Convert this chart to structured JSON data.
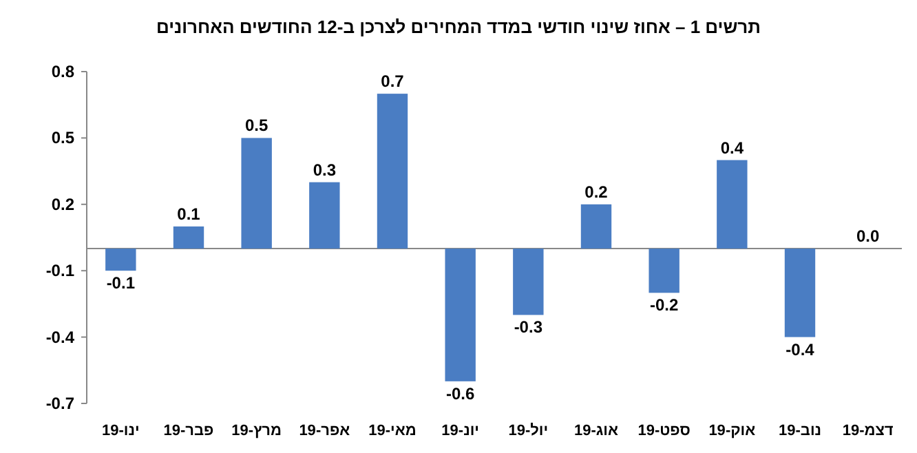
{
  "chart_data": {
    "type": "bar",
    "title": "תרשים 1 – אחוז שינוי חודשי במדד המחירים לצרכן ב-12 החודשים האחרונים",
    "categories": [
      "ינו-19",
      "פבר-19",
      "מרץ-19",
      "אפר-19",
      "מאי-19",
      "יונ-19",
      "יול-19",
      "אוג-19",
      "ספט-19",
      "אוק-19",
      "נוב-19",
      "דצמ-19"
    ],
    "values": [
      -0.1,
      0.1,
      0.5,
      0.3,
      0.7,
      -0.6,
      -0.3,
      0.2,
      -0.2,
      0.4,
      -0.4,
      0.0
    ],
    "color": "#4a7dc3",
    "ylim": [
      -0.7,
      0.8
    ],
    "yticks": [
      -0.7,
      -0.4,
      -0.1,
      0.2,
      0.5,
      0.8
    ],
    "value_labels": [
      "-0.1",
      "0.1",
      "0.5",
      "0.3",
      "0.7",
      "-0.6",
      "-0.3",
      "0.2",
      "-0.2",
      "0.4",
      "-0.4",
      "0.0"
    ]
  }
}
